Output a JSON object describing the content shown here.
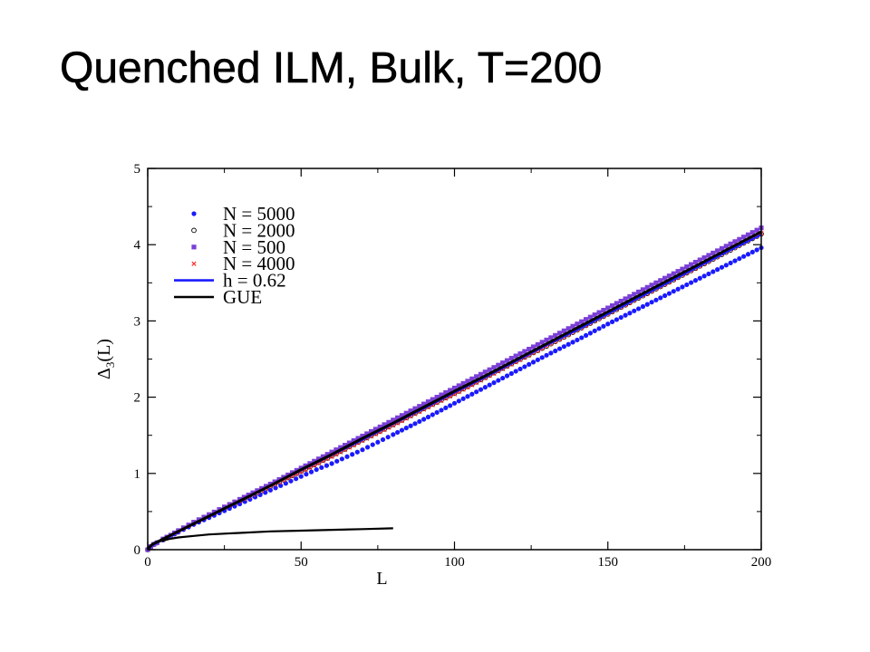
{
  "slide": {
    "title": "Quenched ILM, Bulk, T=200"
  },
  "chart_data": {
    "type": "line",
    "xlabel": "L",
    "ylabel_main": "Δ",
    "ylabel_sub": "3",
    "ylabel_tail": "(L)",
    "xlim": [
      0,
      200
    ],
    "ylim": [
      0,
      5
    ],
    "xticks": [
      0,
      50,
      100,
      150,
      200
    ],
    "yticks": [
      0,
      1,
      2,
      3,
      4,
      5
    ],
    "grid": false,
    "legend_position": "top-left",
    "series": [
      {
        "name": "N = 5000",
        "marker": "dot",
        "color": "#1a1aff",
        "x": [
          0,
          1,
          2,
          3,
          5,
          7.5,
          10,
          15,
          20,
          25,
          30,
          35,
          40,
          45,
          50,
          55,
          60,
          65,
          70,
          75,
          80,
          90,
          100,
          110,
          120,
          130,
          140,
          150,
          160,
          170,
          180,
          190,
          200
        ],
        "y": [
          0,
          0.04,
          0.07,
          0.09,
          0.13,
          0.18,
          0.23,
          0.33,
          0.42,
          0.51,
          0.6,
          0.69,
          0.78,
          0.87,
          0.96,
          1.05,
          1.13,
          1.22,
          1.31,
          1.41,
          1.51,
          1.71,
          1.92,
          2.13,
          2.34,
          2.55,
          2.75,
          2.96,
          3.16,
          3.36,
          3.56,
          3.76,
          3.96
        ]
      },
      {
        "name": "N = 2000",
        "marker": "circle",
        "color": "#000000",
        "x": [
          0,
          1,
          2,
          3,
          5,
          7.5,
          10,
          15,
          20,
          25,
          30,
          40,
          50,
          60,
          70,
          80,
          90,
          100,
          110,
          120,
          130,
          140,
          150,
          160,
          170,
          180,
          190,
          200
        ],
        "y": [
          0,
          0.04,
          0.07,
          0.09,
          0.13,
          0.18,
          0.24,
          0.34,
          0.44,
          0.53,
          0.63,
          0.83,
          1.03,
          1.23,
          1.44,
          1.64,
          1.85,
          2.05,
          2.26,
          2.47,
          2.67,
          2.88,
          3.09,
          3.3,
          3.51,
          3.72,
          3.93,
          4.14
        ]
      },
      {
        "name": "N = 500",
        "marker": "square",
        "color": "#7b3fd6",
        "x": [
          0,
          1,
          2,
          3,
          5,
          7.5,
          10,
          15,
          20,
          25,
          30,
          40,
          50,
          60,
          70,
          80,
          90,
          100,
          110,
          120,
          130,
          140,
          150,
          160,
          170,
          180,
          190,
          200
        ],
        "y": [
          0,
          0.04,
          0.07,
          0.09,
          0.14,
          0.19,
          0.25,
          0.36,
          0.46,
          0.56,
          0.66,
          0.86,
          1.07,
          1.28,
          1.49,
          1.7,
          1.91,
          2.12,
          2.33,
          2.54,
          2.75,
          2.96,
          3.17,
          3.38,
          3.59,
          3.8,
          4.01,
          4.22
        ]
      },
      {
        "name": "N =  4000",
        "marker": "cross",
        "color": "#ff2a2a",
        "x": [
          0,
          1,
          2,
          3,
          5,
          7.5,
          10,
          15,
          20,
          25,
          30,
          40,
          50,
          60,
          70,
          80,
          90,
          100,
          110,
          120,
          130,
          140,
          150,
          160,
          170,
          180,
          190,
          200
        ],
        "y": [
          0,
          0.04,
          0.07,
          0.09,
          0.13,
          0.19,
          0.24,
          0.35,
          0.45,
          0.55,
          0.64,
          0.83,
          1.02,
          1.22,
          1.43,
          1.63,
          1.84,
          2.04,
          2.25,
          2.46,
          2.67,
          2.88,
          3.09,
          3.3,
          3.51,
          3.72,
          3.94,
          4.15
        ]
      },
      {
        "name": "h = 0.62",
        "marker": "line",
        "color": "#1a1aff",
        "x": [
          0,
          1,
          2,
          3,
          5,
          7.5,
          10,
          15,
          20,
          25,
          30,
          40,
          50,
          60,
          70,
          80,
          90,
          100,
          110,
          120,
          130,
          140,
          150,
          160,
          170,
          180,
          190,
          200
        ],
        "y": [
          0,
          0.04,
          0.07,
          0.09,
          0.13,
          0.18,
          0.24,
          0.34,
          0.44,
          0.54,
          0.64,
          0.84,
          1.04,
          1.24,
          1.44,
          1.65,
          1.85,
          2.06,
          2.26,
          2.47,
          2.68,
          2.88,
          3.09,
          3.3,
          3.51,
          3.72,
          3.93,
          4.13
        ]
      },
      {
        "name": "GUE",
        "marker": "line",
        "color": "#000000",
        "x": [
          0,
          0.5,
          1,
          1.5,
          2,
          3,
          4,
          5,
          6,
          8,
          10,
          15,
          20,
          25,
          30,
          40,
          50,
          60,
          70,
          80,
          90,
          100,
          110,
          120,
          130,
          140,
          150,
          160,
          170,
          180,
          190,
          200
        ],
        "y": [
          0,
          0.03,
          0.05,
          0.07,
          0.08,
          0.1,
          0.12,
          0.14,
          0.16,
          0.2,
          0.24,
          0.34,
          0.44,
          0.54,
          0.64,
          0.84,
          1.05,
          1.25,
          1.46,
          1.66,
          1.87,
          2.08,
          2.28,
          2.49,
          2.7,
          2.91,
          3.12,
          3.33,
          3.54,
          3.75,
          3.96,
          4.17
        ]
      },
      {
        "name": "",
        "marker": "line",
        "color": "#000000",
        "x": [
          0,
          0.5,
          1,
          2,
          3,
          4,
          5,
          7,
          10,
          15,
          20,
          25,
          30,
          40,
          50,
          60,
          70,
          80
        ],
        "y": [
          0,
          0.03,
          0.05,
          0.08,
          0.1,
          0.11,
          0.12,
          0.14,
          0.16,
          0.18,
          0.2,
          0.21,
          0.22,
          0.24,
          0.25,
          0.26,
          0.27,
          0.28
        ]
      }
    ]
  }
}
